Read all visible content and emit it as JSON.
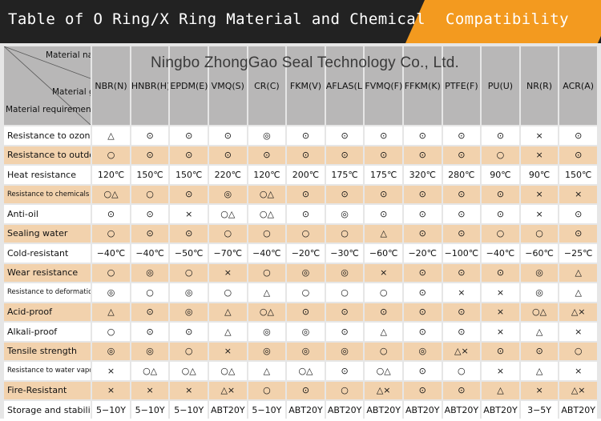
{
  "title": {
    "main": "Table of O Ring/X Ring Material and Chemical",
    "accent": "Compatibility"
  },
  "watermark": "Ningbo ZhongGao Seal Technology Co., Ltd.",
  "corner": {
    "material_name": "Material name",
    "material_grade": "Material grade",
    "material_requirements": "Material requirements"
  },
  "columns": [
    "NBR(N)",
    "HNBR(H)",
    "EPDM(E)",
    "VMQ(S)",
    "CR(C)",
    "FKM(V)",
    "AFLAS(L)",
    "FVMQ(F)",
    "FFKM(K)",
    "PTFE(F)",
    "PU(U)",
    "NR(R)",
    "ACR(A)"
  ],
  "rows": [
    {
      "label": "Resistance to ozone",
      "small": false,
      "cells": [
        "△",
        "⊙",
        "⊙",
        "⊙",
        "◎",
        "⊙",
        "⊙",
        "⊙",
        "⊙",
        "⊙",
        "⊙",
        "×",
        "⊙"
      ]
    },
    {
      "label": "Resistance to outdoor",
      "small": false,
      "cells": [
        "○",
        "⊙",
        "⊙",
        "⊙",
        "⊙",
        "⊙",
        "⊙",
        "⊙",
        "⊙",
        "⊙",
        "○",
        "×",
        "⊙"
      ]
    },
    {
      "label": "Heat resistance",
      "small": false,
      "cells": [
        "120℃",
        "150℃",
        "150℃",
        "220℃",
        "120℃",
        "200℃",
        "175℃",
        "175℃",
        "320℃",
        "280℃",
        "90℃",
        "90℃",
        "150℃"
      ]
    },
    {
      "label": "Resistance to chemicals",
      "small": true,
      "cells": [
        "○△",
        "○",
        "⊙",
        "◎",
        "○△",
        "⊙",
        "⊙",
        "⊙",
        "⊙",
        "⊙",
        "⊙",
        "×",
        "×"
      ]
    },
    {
      "label": "Anti-oil",
      "small": false,
      "cells": [
        "⊙",
        "⊙",
        "×",
        "○△",
        "○△",
        "⊙",
        "◎",
        "⊙",
        "⊙",
        "⊙",
        "⊙",
        "×",
        "⊙"
      ]
    },
    {
      "label": "Sealing water",
      "small": false,
      "cells": [
        "○",
        "⊙",
        "⊙",
        "○",
        "○",
        "○",
        "○",
        "△",
        "⊙",
        "⊙",
        "○",
        "○",
        "⊙"
      ]
    },
    {
      "label": "Cold-resistant",
      "small": false,
      "cells": [
        "−40℃",
        "−40℃",
        "−50℃",
        "−70℃",
        "−40℃",
        "−20℃",
        "−30℃",
        "−60℃",
        "−20℃",
        "−100℃",
        "−40℃",
        "−60℃",
        "−25℃"
      ]
    },
    {
      "label": "Wear resistance",
      "small": false,
      "cells": [
        "○",
        "◎",
        "○",
        "×",
        "○",
        "◎",
        "◎",
        "×",
        "⊙",
        "⊙",
        "⊙",
        "◎",
        "△"
      ]
    },
    {
      "label": "Resistance to deformation",
      "small": true,
      "cells": [
        "◎",
        "○",
        "◎",
        "○",
        "△",
        "○",
        "○",
        "○",
        "⊙",
        "×",
        "×",
        "◎",
        "△"
      ]
    },
    {
      "label": "Acid-proof",
      "small": false,
      "cells": [
        "△",
        "⊙",
        "◎",
        "△",
        "○△",
        "⊙",
        "⊙",
        "⊙",
        "⊙",
        "⊙",
        "×",
        "○△",
        "△×"
      ]
    },
    {
      "label": "Alkali-proof",
      "small": false,
      "cells": [
        "○",
        "⊙",
        "⊙",
        "△",
        "◎",
        "◎",
        "⊙",
        "△",
        "⊙",
        "⊙",
        "×",
        "△",
        "×"
      ]
    },
    {
      "label": "Tensile strength",
      "small": false,
      "cells": [
        "◎",
        "◎",
        "○",
        "×",
        "◎",
        "◎",
        "◎",
        "○",
        "◎",
        "△×",
        "⊙",
        "⊙",
        "○"
      ]
    },
    {
      "label": "Resistance to water vapor",
      "small": true,
      "cells": [
        "×",
        "○△",
        "○△",
        "○△",
        "△",
        "○△",
        "⊙",
        "○△",
        "⊙",
        "○",
        "×",
        "△",
        "×"
      ]
    },
    {
      "label": "Fire-Resistant",
      "small": false,
      "cells": [
        "×",
        "×",
        "×",
        "△×",
        "○",
        "⊙",
        "○",
        "△×",
        "⊙",
        "⊙",
        "△",
        "×",
        "△×"
      ]
    },
    {
      "label": "Storage and stability",
      "small": false,
      "cells": [
        "5−10Y",
        "5−10Y",
        "5−10Y",
        "ABT20Y",
        "5−10Y",
        "ABT20Y",
        "ABT20Y",
        "ABT20Y",
        "ABT20Y",
        "ABT20Y",
        "ABT20Y",
        "3−5Y",
        "ABT20Y"
      ]
    }
  ],
  "colors": {
    "title_bg": "#222222",
    "accent": "#f39a1f",
    "header_bg": "#b8b7b7",
    "row_alt": "#f2d2ad",
    "row_base": "#ffffff"
  }
}
